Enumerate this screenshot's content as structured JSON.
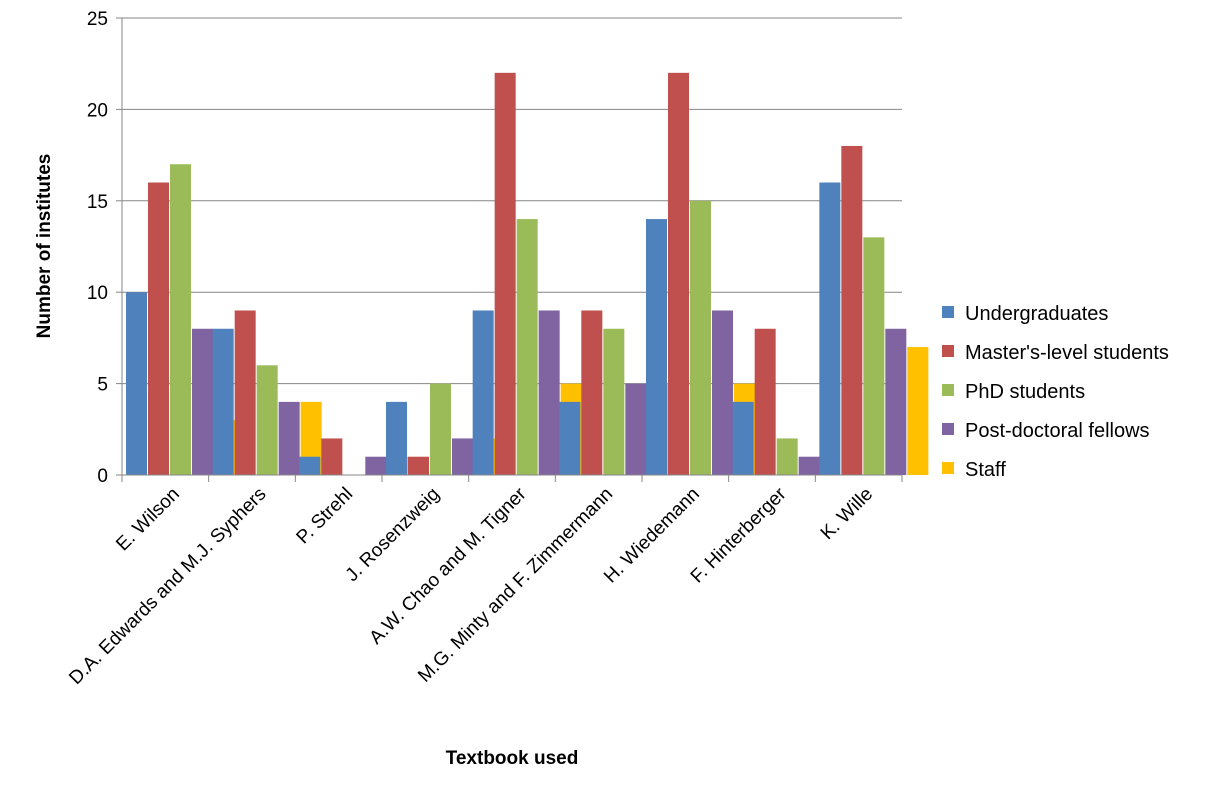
{
  "chart_data": {
    "type": "bar",
    "title": "",
    "xlabel": "Textbook used",
    "ylabel": "Number of institutes",
    "ylim": [
      0,
      25
    ],
    "yticks": [
      0,
      5,
      10,
      15,
      20,
      25
    ],
    "grid": true,
    "legend_position": "right",
    "categories": [
      "E. Wilson",
      "D.A. Edwards and M.J. Syphers",
      "P. Strehl",
      "J. Rosenzweig",
      "A.W. Chao and M. Tigner",
      "M.G. Minty and F. Zimmermann",
      "H. Wiedemann",
      "F. Hinterberger",
      "K. Wille"
    ],
    "series": [
      {
        "name": "Undergraduates",
        "color": "#4F81BD",
        "values": [
          10,
          8,
          1,
          4,
          9,
          4,
          14,
          4,
          16
        ]
      },
      {
        "name": "Master's-level students",
        "color": "#C0504D",
        "values": [
          16,
          9,
          2,
          1,
          22,
          9,
          22,
          8,
          18
        ]
      },
      {
        "name": "PhD students",
        "color": "#9BBB59",
        "values": [
          17,
          6,
          0,
          5,
          14,
          8,
          15,
          2,
          13
        ]
      },
      {
        "name": "Post-doctoral fellows",
        "color": "#8064A2",
        "values": [
          8,
          4,
          1,
          2,
          9,
          5,
          9,
          1,
          8
        ]
      },
      {
        "name": "Staff",
        "color": "#FFC000",
        "values": [
          3,
          4,
          1,
          2,
          5,
          5,
          5,
          0,
          7
        ]
      }
    ]
  }
}
